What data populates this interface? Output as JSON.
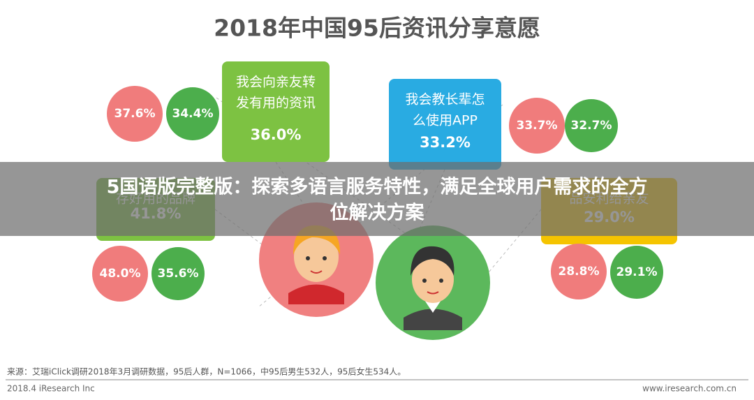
{
  "title": "2018年中国95后资讯分享意愿",
  "boxes": [
    {
      "label": [
        "我会向亲友转",
        "发有用的资讯"
      ],
      "value": "36.0%",
      "female": "37.6%",
      "male": "34.4%"
    },
    {
      "label": [
        "我会教长辈怎",
        "么使用APP"
      ],
      "value": "33.2%",
      "female": "33.7%",
      "male": "32.7%"
    },
    {
      "label": [
        "存好用的品牌"
      ],
      "value": "41.8%",
      "female": "48.0%",
      "male": "35.6%"
    },
    {
      "label": [
        "品安利给亲友"
      ],
      "value": "29.0%",
      "female": "28.8%",
      "male": "29.1%"
    }
  ],
  "banner": [
    "5国语版完整版：探索多语言服务特性，满足全球用户需求的全方",
    "位解决方案"
  ],
  "source": "来源：艾瑞iClick调研2018年3月调研数据，95后人群，N=1066，中95后男生532人，95后女生534人。",
  "footer_left": "2018.4 iResearch Inc",
  "footer_right": "www.iresearch.com.cn"
}
